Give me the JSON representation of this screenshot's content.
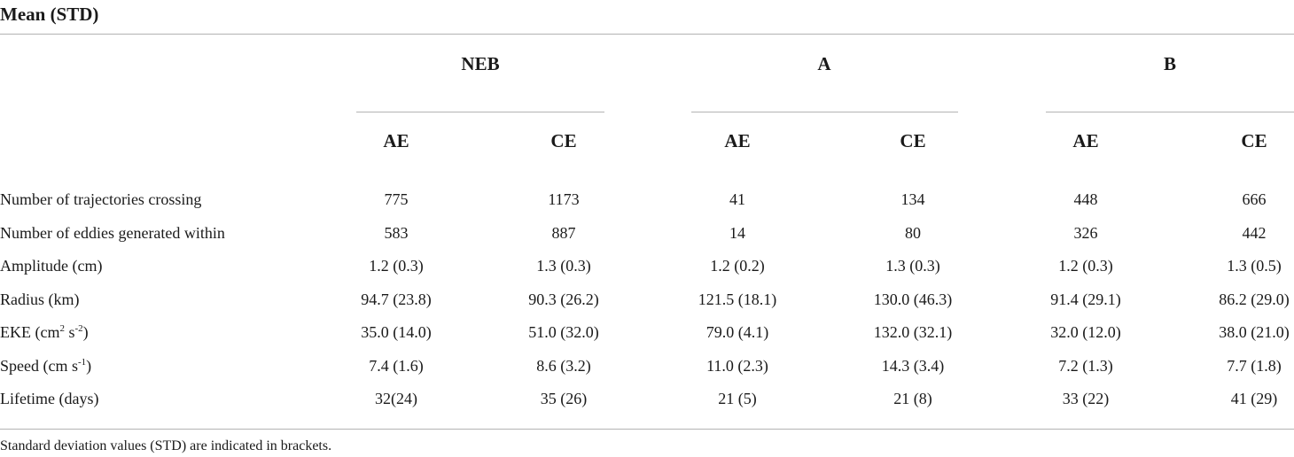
{
  "caption": "Mean (STD)",
  "groups": [
    {
      "label": "NEB",
      "sub": [
        "AE",
        "CE"
      ]
    },
    {
      "label": "A",
      "sub": [
        "AE",
        "CE"
      ]
    },
    {
      "label": "B",
      "sub": [
        "AE",
        "CE"
      ]
    }
  ],
  "rows": [
    {
      "label": "Number of trajectories crossing",
      "values": [
        "775",
        "1173",
        "41",
        "134",
        "448",
        "666"
      ]
    },
    {
      "label": "Number of eddies generated within",
      "values": [
        "583",
        "887",
        "14",
        "80",
        "326",
        "442"
      ]
    },
    {
      "label": "Amplitude (cm)",
      "values": [
        "1.2 (0.3)",
        "1.3 (0.3)",
        "1.2 (0.2)",
        "1.3 (0.3)",
        "1.2 (0.3)",
        "1.3 (0.5)"
      ]
    },
    {
      "label": "Radius (km)",
      "values": [
        "94.7 (23.8)",
        "90.3 (26.2)",
        "121.5 (18.1)",
        "130.0 (46.3)",
        "91.4 (29.1)",
        "86.2 (29.0)"
      ]
    },
    {
      "label_parts": {
        "a": "EKE (cm",
        "b": "2",
        "c": " s",
        "d": "-2",
        "e": ")"
      },
      "values": [
        "35.0 (14.0)",
        "51.0 (32.0)",
        "79.0 (4.1)",
        "132.0 (32.1)",
        "32.0 (12.0)",
        "38.0 (21.0)"
      ]
    },
    {
      "label_parts": {
        "a": "Speed (cm s",
        "b": "-1",
        "c": ")"
      },
      "values": [
        "7.4 (1.6)",
        "8.6 (3.2)",
        "11.0 (2.3)",
        "14.3 (3.4)",
        "7.2 (1.3)",
        "7.7 (1.8)"
      ]
    },
    {
      "label": "Lifetime (days)",
      "values": [
        "32(24)",
        "35 (26)",
        "21 (5)",
        "21 (8)",
        "33 (22)",
        "41 (29)"
      ]
    }
  ],
  "footnote": "Standard deviation values (STD) are indicated in brackets."
}
